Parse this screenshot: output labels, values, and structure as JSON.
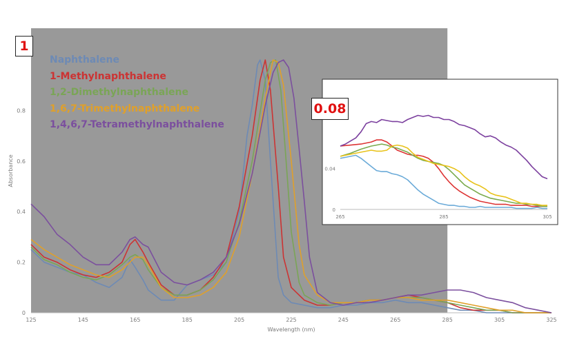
{
  "chart_data": [
    {
      "type": "line",
      "xlabel": "Wavelength (nm)",
      "ylabel": "Absorbance",
      "xlim": [
        125,
        325
      ],
      "ylim": [
        0,
        1.06
      ],
      "x_ticks": [
        125,
        145,
        165,
        185,
        205,
        225,
        245,
        265,
        285,
        305,
        325
      ],
      "y_ticks": [
        0,
        0.2,
        0.4,
        0.6,
        0.8
      ],
      "shaded_region": [
        125,
        285
      ],
      "shaded_color": "#999999",
      "legend_position": "top-left",
      "badge": "1",
      "series": [
        {
          "name": "Naphthalene",
          "color": "#6d8ab5",
          "x": [
            125,
            130,
            135,
            140,
            145,
            150,
            155,
            160,
            163,
            165,
            168,
            170,
            175,
            180,
            185,
            190,
            195,
            200,
            205,
            208,
            210,
            212,
            213,
            215,
            217,
            220,
            222,
            225,
            230,
            235,
            240,
            245,
            250,
            255,
            260,
            265,
            270,
            275,
            280,
            285,
            290,
            295,
            300,
            305,
            310,
            315,
            320,
            325
          ],
          "y": [
            0.25,
            0.2,
            0.18,
            0.16,
            0.15,
            0.12,
            0.1,
            0.14,
            0.21,
            0.18,
            0.13,
            0.09,
            0.05,
            0.05,
            0.11,
            0.13,
            0.15,
            0.2,
            0.4,
            0.7,
            0.82,
            0.98,
            1.0,
            0.92,
            0.6,
            0.14,
            0.07,
            0.04,
            0.03,
            0.02,
            0.02,
            0.03,
            0.03,
            0.04,
            0.04,
            0.05,
            0.04,
            0.04,
            0.03,
            0.02,
            0.01,
            0.01,
            0.0,
            0.0,
            0.0,
            0.0,
            0.0,
            0.0
          ]
        },
        {
          "name": "1-Methylnaphthalene",
          "color": "#cc3333",
          "x": [
            125,
            130,
            135,
            140,
            145,
            150,
            155,
            160,
            163,
            165,
            168,
            170,
            175,
            180,
            185,
            190,
            195,
            200,
            205,
            210,
            213,
            215,
            217,
            220,
            222,
            225,
            230,
            235,
            240,
            245,
            250,
            255,
            260,
            265,
            270,
            275,
            280,
            285,
            290,
            295,
            300,
            305,
            310,
            315,
            320,
            325
          ],
          "y": [
            0.27,
            0.22,
            0.2,
            0.17,
            0.15,
            0.14,
            0.16,
            0.2,
            0.27,
            0.29,
            0.24,
            0.2,
            0.11,
            0.07,
            0.07,
            0.09,
            0.14,
            0.22,
            0.42,
            0.7,
            0.92,
            1.0,
            0.88,
            0.5,
            0.22,
            0.1,
            0.05,
            0.03,
            0.03,
            0.04,
            0.04,
            0.05,
            0.05,
            0.06,
            0.07,
            0.06,
            0.05,
            0.04,
            0.02,
            0.01,
            0.01,
            0.01,
            0.0,
            0.0,
            0.0,
            0.0
          ]
        },
        {
          "name": "1,2-Dimethylnaphthalene",
          "color": "#7aa556",
          "x": [
            125,
            130,
            135,
            140,
            145,
            150,
            155,
            160,
            163,
            165,
            168,
            170,
            175,
            180,
            185,
            190,
            195,
            200,
            205,
            210,
            215,
            217,
            219,
            221,
            223,
            225,
            228,
            230,
            235,
            240,
            245,
            250,
            255,
            260,
            265,
            270,
            275,
            280,
            285,
            290,
            295,
            300,
            305,
            310,
            315,
            320,
            325
          ],
          "y": [
            0.26,
            0.21,
            0.19,
            0.16,
            0.14,
            0.13,
            0.15,
            0.19,
            0.22,
            0.23,
            0.21,
            0.17,
            0.1,
            0.07,
            0.07,
            0.09,
            0.13,
            0.2,
            0.36,
            0.6,
            0.92,
            0.99,
            1.0,
            0.88,
            0.6,
            0.32,
            0.12,
            0.07,
            0.04,
            0.03,
            0.04,
            0.04,
            0.05,
            0.05,
            0.06,
            0.06,
            0.06,
            0.05,
            0.04,
            0.03,
            0.02,
            0.01,
            0.01,
            0.0,
            0.0,
            0.0,
            0.0
          ]
        },
        {
          "name": "1,6,7-Trimethylnaphthalene",
          "color": "#e0a02a",
          "x": [
            125,
            130,
            135,
            140,
            145,
            150,
            155,
            160,
            163,
            165,
            168,
            170,
            175,
            180,
            185,
            190,
            195,
            200,
            205,
            210,
            215,
            218,
            220,
            222,
            225,
            228,
            230,
            235,
            240,
            245,
            250,
            255,
            260,
            265,
            270,
            275,
            280,
            285,
            290,
            295,
            300,
            305,
            310,
            315,
            320,
            325
          ],
          "y": [
            0.29,
            0.25,
            0.22,
            0.19,
            0.17,
            0.15,
            0.14,
            0.17,
            0.2,
            0.22,
            0.22,
            0.19,
            0.1,
            0.06,
            0.06,
            0.07,
            0.1,
            0.16,
            0.3,
            0.55,
            0.85,
            1.0,
            0.99,
            0.9,
            0.6,
            0.27,
            0.15,
            0.07,
            0.04,
            0.04,
            0.04,
            0.05,
            0.05,
            0.06,
            0.06,
            0.05,
            0.05,
            0.05,
            0.04,
            0.03,
            0.02,
            0.01,
            0.01,
            0.0,
            0.0,
            0.0
          ]
        },
        {
          "name": "1,4,6,7-Tetramethylnaphthalene",
          "color": "#7b4f9e",
          "x": [
            125,
            130,
            135,
            140,
            145,
            150,
            155,
            160,
            163,
            165,
            168,
            170,
            175,
            180,
            185,
            190,
            195,
            200,
            205,
            210,
            215,
            218,
            220,
            222,
            224,
            226,
            228,
            230,
            232,
            235,
            240,
            245,
            250,
            255,
            260,
            265,
            270,
            275,
            280,
            285,
            290,
            295,
            300,
            305,
            310,
            315,
            320,
            325
          ],
          "y": [
            0.43,
            0.38,
            0.31,
            0.27,
            0.22,
            0.19,
            0.19,
            0.24,
            0.29,
            0.3,
            0.27,
            0.26,
            0.16,
            0.12,
            0.11,
            0.13,
            0.16,
            0.22,
            0.35,
            0.55,
            0.82,
            0.95,
            0.99,
            1.0,
            0.97,
            0.85,
            0.65,
            0.44,
            0.22,
            0.08,
            0.04,
            0.03,
            0.04,
            0.04,
            0.05,
            0.06,
            0.07,
            0.07,
            0.08,
            0.09,
            0.09,
            0.08,
            0.06,
            0.05,
            0.04,
            0.02,
            0.01,
            0.0
          ]
        }
      ]
    },
    {
      "type": "line",
      "xlim": [
        265,
        305
      ],
      "ylim": [
        0,
        0.12
      ],
      "x_ticks": [
        265,
        285,
        305
      ],
      "y_ticks": [
        0,
        0.04
      ],
      "badge": "0.08",
      "series": [
        {
          "name": "Naphthalene",
          "color": "#6aaad8",
          "x": [
            265,
            266,
            267,
            268,
            269,
            270,
            271,
            272,
            273,
            274,
            275,
            276,
            277,
            278,
            279,
            280,
            281,
            282,
            283,
            284,
            285,
            286,
            287,
            288,
            289,
            290,
            291,
            292,
            293,
            294,
            295,
            296,
            297,
            298,
            299,
            300,
            301,
            302,
            303,
            304,
            305
          ],
          "y": [
            0.05,
            0.051,
            0.052,
            0.053,
            0.05,
            0.046,
            0.042,
            0.038,
            0.037,
            0.037,
            0.035,
            0.034,
            0.032,
            0.029,
            0.024,
            0.019,
            0.015,
            0.012,
            0.009,
            0.006,
            0.005,
            0.004,
            0.004,
            0.003,
            0.003,
            0.002,
            0.002,
            0.003,
            0.002,
            0.002,
            0.002,
            0.002,
            0.002,
            0.002,
            0.001,
            0.001,
            0.001,
            0.001,
            0.002,
            0.001,
            0.001
          ]
        },
        {
          "name": "1-Methylnaphthalene",
          "color": "#dd3333",
          "x": [
            265,
            267,
            269,
            271,
            272,
            273,
            274,
            275,
            276,
            277,
            278,
            279,
            280,
            281,
            282,
            283,
            284,
            285,
            286,
            287,
            288,
            289,
            290,
            291,
            292,
            293,
            294,
            295,
            296,
            297,
            298,
            299,
            300,
            301,
            302,
            303,
            304,
            305
          ],
          "y": [
            0.062,
            0.063,
            0.064,
            0.066,
            0.068,
            0.068,
            0.066,
            0.062,
            0.058,
            0.056,
            0.054,
            0.053,
            0.053,
            0.052,
            0.05,
            0.046,
            0.04,
            0.033,
            0.027,
            0.022,
            0.018,
            0.015,
            0.012,
            0.01,
            0.008,
            0.007,
            0.006,
            0.005,
            0.005,
            0.005,
            0.004,
            0.004,
            0.004,
            0.004,
            0.003,
            0.003,
            0.003,
            0.003
          ]
        },
        {
          "name": "1,2-Dimethylnaphthalene",
          "color": "#7aaa4c",
          "x": [
            265,
            267,
            269,
            271,
            272,
            273,
            274,
            275,
            276,
            277,
            278,
            279,
            280,
            281,
            282,
            283,
            284,
            285,
            286,
            287,
            288,
            289,
            290,
            291,
            292,
            293,
            294,
            295,
            296,
            297,
            298,
            299,
            300,
            301,
            302,
            303,
            304,
            305
          ],
          "y": [
            0.052,
            0.055,
            0.059,
            0.062,
            0.063,
            0.064,
            0.063,
            0.061,
            0.06,
            0.058,
            0.056,
            0.053,
            0.05,
            0.048,
            0.047,
            0.046,
            0.045,
            0.043,
            0.039,
            0.034,
            0.029,
            0.024,
            0.021,
            0.018,
            0.015,
            0.013,
            0.011,
            0.01,
            0.009,
            0.008,
            0.007,
            0.006,
            0.006,
            0.005,
            0.005,
            0.004,
            0.003,
            0.003
          ]
        },
        {
          "name": "1,6,7-Trimethylnaphthalene",
          "color": "#e8c21a",
          "x": [
            265,
            267,
            269,
            271,
            272,
            273,
            274,
            275,
            276,
            277,
            278,
            279,
            280,
            281,
            282,
            283,
            284,
            285,
            286,
            287,
            288,
            289,
            290,
            291,
            292,
            293,
            294,
            295,
            296,
            297,
            298,
            299,
            300,
            301,
            302,
            303,
            304,
            305
          ],
          "y": [
            0.052,
            0.054,
            0.056,
            0.058,
            0.057,
            0.057,
            0.058,
            0.062,
            0.063,
            0.062,
            0.06,
            0.055,
            0.051,
            0.049,
            0.047,
            0.045,
            0.044,
            0.043,
            0.042,
            0.04,
            0.037,
            0.032,
            0.028,
            0.025,
            0.023,
            0.02,
            0.016,
            0.014,
            0.013,
            0.012,
            0.01,
            0.008,
            0.006,
            0.006,
            0.005,
            0.005,
            0.004,
            0.004
          ]
        },
        {
          "name": "1,4,6,7-Tetramethylnaphthalene",
          "color": "#7b3f9e",
          "x": [
            265,
            266,
            267,
            268,
            269,
            270,
            271,
            272,
            273,
            274,
            275,
            276,
            277,
            278,
            279,
            280,
            281,
            282,
            283,
            284,
            285,
            286,
            287,
            288,
            289,
            290,
            291,
            292,
            293,
            294,
            295,
            296,
            297,
            298,
            299,
            300,
            301,
            302,
            303,
            304,
            305
          ],
          "y": [
            0.062,
            0.064,
            0.067,
            0.07,
            0.076,
            0.084,
            0.086,
            0.085,
            0.088,
            0.087,
            0.086,
            0.086,
            0.085,
            0.088,
            0.09,
            0.092,
            0.091,
            0.092,
            0.09,
            0.09,
            0.088,
            0.088,
            0.086,
            0.083,
            0.082,
            0.08,
            0.078,
            0.074,
            0.071,
            0.072,
            0.07,
            0.066,
            0.063,
            0.061,
            0.058,
            0.053,
            0.048,
            0.042,
            0.037,
            0.032,
            0.03
          ]
        }
      ]
    }
  ]
}
